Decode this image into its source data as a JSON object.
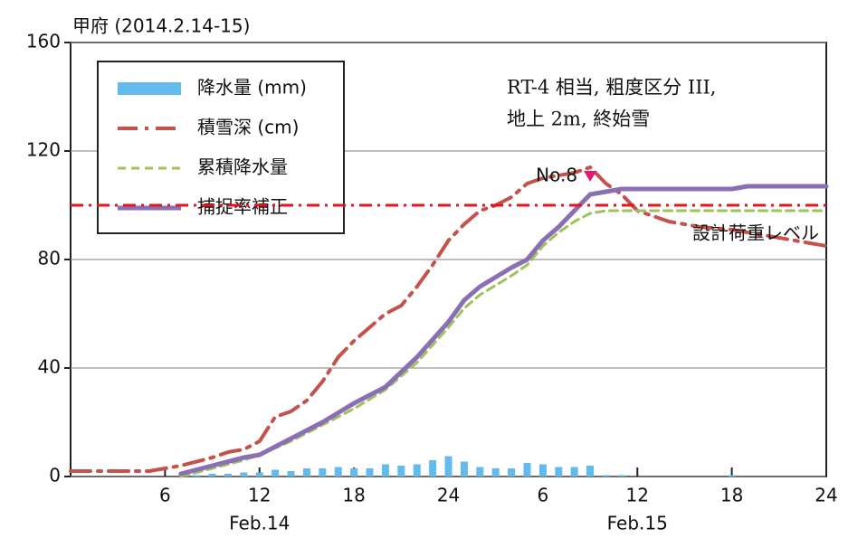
{
  "chart_data": {
    "type": "line",
    "title": "甲府 (2014.2.14-15)",
    "annotations": [
      "RT-4 相当, 粗度区分 III,",
      "地上 2m, 終始雪"
    ],
    "date_labels": [
      {
        "x": 12,
        "label": "Feb.14"
      },
      {
        "x": 36,
        "label": "Feb.15"
      }
    ],
    "xlim": [
      0,
      48
    ],
    "xticks": [
      6,
      12,
      18,
      24,
      {
        "value": 30,
        "label": "6"
      },
      {
        "value": 36,
        "label": "12"
      },
      {
        "value": 42,
        "label": "18"
      },
      {
        "value": 48,
        "label": "24"
      }
    ],
    "ylim": [
      0,
      160
    ],
    "yticks": [
      0,
      40,
      80,
      120,
      160
    ],
    "grid": true,
    "reference_line": {
      "value": 100,
      "label": "設計荷重レベル",
      "color": "#e8141c"
    },
    "marker": {
      "label": "No.8",
      "x": 33,
      "y": 110,
      "color": "#e8186c"
    },
    "series": [
      {
        "name": "降水量 (mm)",
        "type": "bar",
        "color": "#62bbea",
        "x": [
          8,
          9,
          10,
          11,
          12,
          13,
          14,
          15,
          16,
          17,
          18,
          19,
          20,
          21,
          22,
          23,
          24,
          25,
          26,
          27,
          28,
          29,
          30,
          31,
          32,
          33,
          34,
          35,
          42
        ],
        "values": [
          0.5,
          1,
          1,
          1.5,
          1.5,
          2.5,
          2,
          3,
          3,
          3.5,
          3,
          3,
          4.5,
          4,
          4.5,
          6,
          7.5,
          5.5,
          3.5,
          3,
          3,
          5,
          4.5,
          3.5,
          3.5,
          4,
          0.5,
          0.5,
          0.5
        ]
      },
      {
        "name": "積雪深 (cm)",
        "type": "line",
        "style": "dashdot",
        "color": "#c5514b",
        "x": [
          0,
          5,
          7,
          9,
          10,
          11,
          12,
          13,
          14,
          15,
          16,
          17,
          18,
          19,
          20,
          21,
          22,
          23,
          24,
          25,
          26,
          27,
          28,
          29,
          30,
          31,
          32,
          33,
          34,
          35,
          36,
          38,
          40,
          42,
          44,
          46,
          48
        ],
        "values": [
          2,
          2,
          4,
          7,
          9,
          10,
          13,
          22,
          24,
          28,
          35,
          44,
          50,
          55,
          60,
          63,
          70,
          78,
          87,
          93,
          98,
          100,
          103,
          108,
          110,
          111,
          112,
          114,
          108,
          104,
          98,
          94,
          92,
          91,
          89,
          87,
          85
        ]
      },
      {
        "name": "累積降水量",
        "type": "line",
        "style": "dashed",
        "color": "#9dc35a",
        "x": [
          7,
          9,
          11,
          12,
          14,
          16,
          18,
          20,
          22,
          24,
          25,
          26,
          28,
          29,
          30,
          31,
          32,
          33,
          34,
          48
        ],
        "values": [
          0,
          3,
          6,
          8,
          13,
          19,
          25,
          32,
          42,
          55,
          62,
          67,
          74,
          78,
          85,
          90,
          94,
          97,
          98,
          98
        ]
      },
      {
        "name": "捕捉率補正",
        "type": "line",
        "style": "solid",
        "color": "#8a6fb5",
        "x": [
          7,
          9,
          11,
          12,
          14,
          16,
          18,
          20,
          22,
          24,
          25,
          26,
          28,
          29,
          30,
          31,
          32,
          33,
          35,
          42,
          43,
          48
        ],
        "values": [
          1,
          4,
          7,
          8,
          14,
          20,
          27,
          33,
          44,
          57,
          65,
          70,
          77,
          80,
          87,
          92,
          98,
          104,
          106,
          106,
          107,
          107
        ]
      }
    ]
  }
}
